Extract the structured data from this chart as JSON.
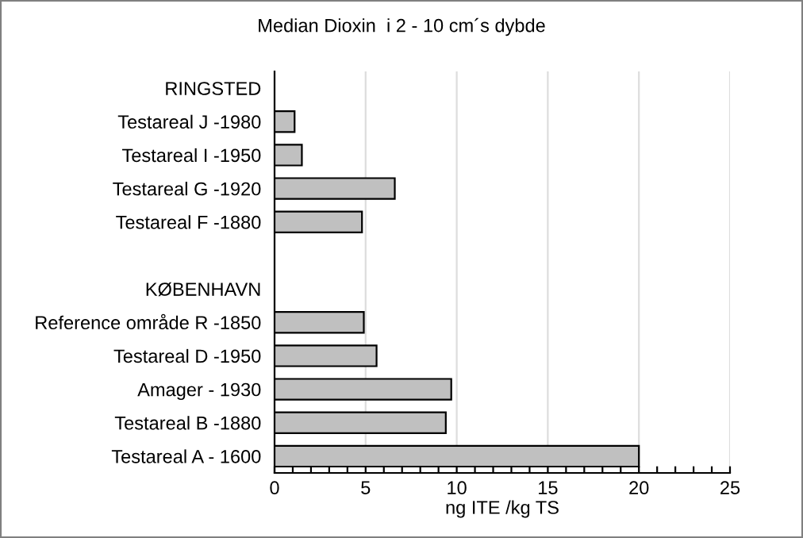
{
  "chart_data": {
    "type": "bar",
    "orientation": "horizontal",
    "title": "Median Dioxin  i 2 - 10 cm´s dybde",
    "xlabel": "ng ITE /kg TS",
    "categories": [
      "RINGSTED",
      "Testareal J -1980",
      "Testareal I -1950",
      "Testareal G -1920",
      "Testareal F -1880",
      null,
      "KØBENHAVN",
      "Reference område R -1850",
      "Testareal D -1950",
      "Amager - 1930",
      "Testareal B -1880",
      "Testareal A - 1600"
    ],
    "values": [
      null,
      1.1,
      1.5,
      6.6,
      4.8,
      null,
      null,
      4.9,
      5.6,
      9.7,
      9.4,
      20.0
    ],
    "color": "#c0c0c0",
    "xlim": [
      0,
      25
    ],
    "xticks": [
      0,
      {
        "value": 1,
        "label": null
      },
      {
        "value": 2,
        "label": null
      },
      {
        "value": 3,
        "label": null
      },
      {
        "value": 4,
        "label": null
      },
      5,
      {
        "value": 6,
        "label": null
      },
      {
        "value": 7,
        "label": null
      },
      {
        "value": 8,
        "label": null
      },
      {
        "value": 9,
        "label": null
      },
      10,
      {
        "value": 11,
        "label": null
      },
      {
        "value": 12,
        "label": null
      },
      {
        "value": 13,
        "label": null
      },
      {
        "value": 14,
        "label": null
      },
      15,
      {
        "value": 16,
        "label": null
      },
      {
        "value": 17,
        "label": null
      },
      {
        "value": 18,
        "label": null
      },
      {
        "value": 19,
        "label": null
      },
      20,
      {
        "value": 21,
        "label": null
      },
      {
        "value": 22,
        "label": null
      },
      {
        "value": 23,
        "label": null
      },
      {
        "value": 24,
        "label": null
      },
      25
    ],
    "grid": "x"
  }
}
